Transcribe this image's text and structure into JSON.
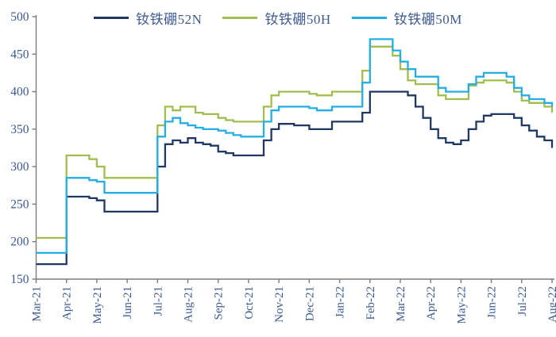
{
  "chart_data": {
    "type": "line",
    "title": "",
    "xlabel": "",
    "ylabel": "",
    "grid": false,
    "legend_position": "top",
    "step_interpolation": true,
    "ylim": [
      150,
      500
    ],
    "ytick_interval": 50,
    "axis_color": "#7b7b7b",
    "text_color": "#3c5a90",
    "points_per_month": 4,
    "x_tick_labels": [
      "Mar-21",
      "Apr-21",
      "May-21",
      "Jun-21",
      "Jul-21",
      "Aug-21",
      "Sep-21",
      "Oct-21",
      "Nov-21",
      "Dec-21",
      "Jan-22",
      "Feb-22",
      "Mar-22",
      "Apr-22",
      "May-22",
      "Jun-22",
      "Jul-22",
      "Aug-22"
    ],
    "series": [
      {
        "name": "钕铁硼52N",
        "color": "#1F3864",
        "values": [
          170,
          170,
          170,
          170,
          260,
          260,
          260,
          258,
          255,
          240,
          240,
          240,
          240,
          240,
          240,
          240,
          300,
          330,
          335,
          332,
          338,
          332,
          330,
          328,
          320,
          318,
          315,
          315,
          315,
          315,
          335,
          350,
          357,
          357,
          355,
          355,
          350,
          350,
          350,
          360,
          360,
          360,
          360,
          372,
          400,
          400,
          400,
          400,
          400,
          395,
          380,
          365,
          350,
          338,
          332,
          330,
          335,
          350,
          360,
          368,
          370,
          370,
          370,
          365,
          355,
          348,
          340,
          335,
          325
        ]
      },
      {
        "name": "钕铁硼50H",
        "color": "#A2BD4F",
        "values": [
          205,
          205,
          205,
          205,
          315,
          315,
          315,
          310,
          300,
          285,
          285,
          285,
          285,
          285,
          285,
          285,
          355,
          380,
          375,
          380,
          380,
          372,
          370,
          370,
          365,
          362,
          360,
          360,
          360,
          360,
          380,
          395,
          400,
          400,
          400,
          400,
          397,
          395,
          395,
          400,
          400,
          400,
          400,
          428,
          460,
          460,
          460,
          448,
          430,
          415,
          410,
          410,
          410,
          395,
          390,
          390,
          390,
          408,
          412,
          415,
          415,
          415,
          412,
          400,
          388,
          385,
          385,
          380,
          372
        ]
      },
      {
        "name": "钕铁硼50M",
        "color": "#25AEE4",
        "values": [
          185,
          185,
          185,
          185,
          285,
          285,
          285,
          282,
          280,
          265,
          265,
          265,
          265,
          265,
          265,
          265,
          340,
          360,
          365,
          358,
          355,
          352,
          350,
          350,
          348,
          345,
          342,
          340,
          340,
          340,
          360,
          375,
          380,
          380,
          380,
          380,
          378,
          375,
          375,
          380,
          380,
          380,
          380,
          412,
          470,
          470,
          470,
          455,
          440,
          430,
          420,
          420,
          420,
          405,
          400,
          400,
          400,
          410,
          420,
          425,
          425,
          425,
          420,
          405,
          395,
          390,
          390,
          385,
          380
        ]
      }
    ]
  }
}
